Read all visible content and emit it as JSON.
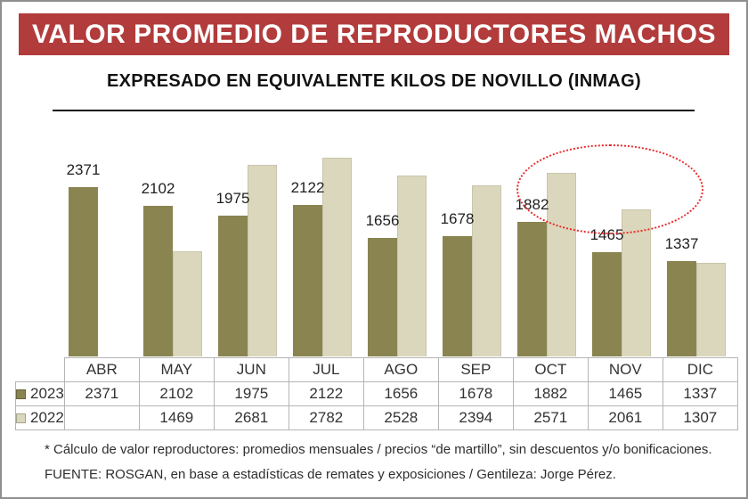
{
  "title": "VALOR PROMEDIO DE REPRODUCTORES MACHOS",
  "subtitle": "EXPRESADO EN EQUIVALENTE KILOS DE NOVILLO (INMAG)",
  "chart_data": {
    "type": "bar",
    "categories": [
      "ABR",
      "MAY",
      "JUN",
      "JUL",
      "AGO",
      "SEP",
      "OCT",
      "NOV",
      "DIC"
    ],
    "series": [
      {
        "name": "2023",
        "color": "#8A8450",
        "values": [
          2371,
          2102,
          1975,
          2122,
          1656,
          1678,
          1882,
          1465,
          1337
        ]
      },
      {
        "name": "2022",
        "color": "#DBD7BC",
        "values": [
          null,
          1469,
          2681,
          2782,
          2528,
          2394,
          2571,
          2061,
          1307
        ]
      }
    ],
    "value_labels": {
      "series": "2023",
      "values": [
        2371,
        2102,
        1975,
        2122,
        1656,
        1678,
        1882,
        1465,
        1337
      ]
    },
    "ylim": [
      0,
      2900
    ],
    "grid": false,
    "legend_position": "table-left-column",
    "annotation": "red dotted ellipse highlighting OCT-NOV region"
  },
  "footnotes": {
    "line1": "* Cálculo de valor reproductores: promedios mensuales / precios “de martillo”, sin descuentos y/o bonificaciones.",
    "line2": "FUENTE: ROSGAN, en base a estadísticas de remates y exposiciones / Gentileza: Jorge Pérez."
  },
  "colors": {
    "banner_red": "#B23B3B",
    "banner_text": "#FFFFFF",
    "bar_2023": "#8A8450",
    "bar_2022": "#DBD7BC",
    "ellipse_red": "#E82A2A",
    "table_border": "#B5B5B5"
  }
}
